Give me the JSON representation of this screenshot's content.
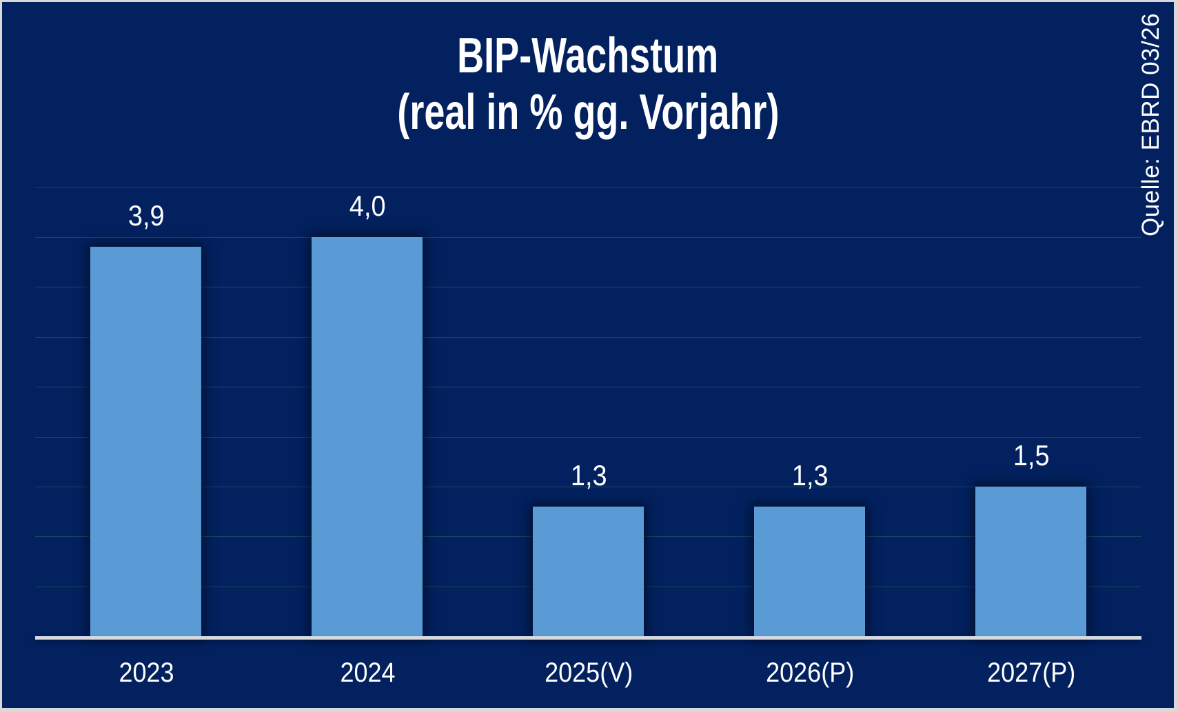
{
  "chart_data": {
    "type": "bar",
    "title": "BIP-Wachstum",
    "subtitle": "(real in % gg. Vorjahr)",
    "source": "Quelle: EBRD 03/26",
    "categories": [
      "2023",
      "2024",
      "2025(V)",
      "2026(P)",
      "2027(P)"
    ],
    "values": [
      3.9,
      4.0,
      1.3,
      1.3,
      1.5
    ],
    "value_labels": [
      "3,9",
      "4,0",
      "1,3",
      "1,3",
      "1,5"
    ],
    "xlabel": "",
    "ylabel": "",
    "ylim": [
      0,
      4.5
    ],
    "gridline_step": 0.5,
    "grid": true,
    "legend_position": "none",
    "y_axis_tick_labels_visible": false,
    "colors": {
      "background": "#02215E",
      "bar": "#5B9BD5",
      "axis_line": "#D6D9DD",
      "gridline_rgba": "rgba(45,110,95,0.55)",
      "text": "#FFFFFF",
      "frame_border": "#D8D8DA"
    }
  }
}
